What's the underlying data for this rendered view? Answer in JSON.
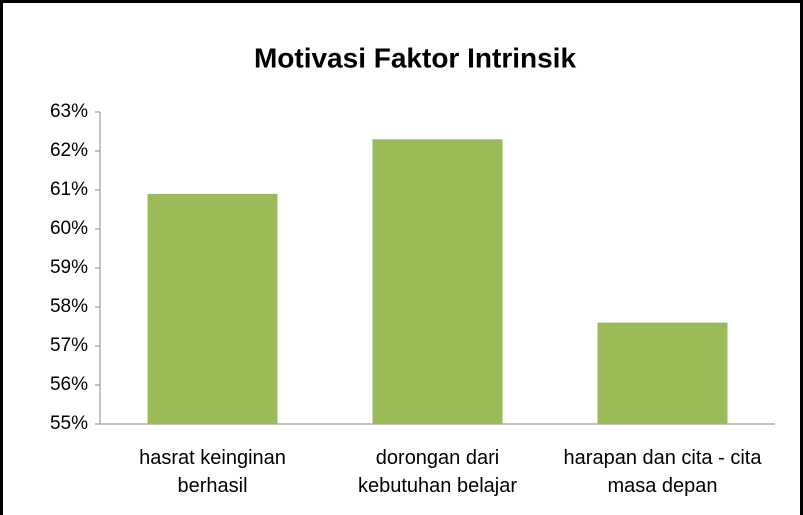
{
  "chart_data": {
    "type": "bar",
    "title": "Motivasi Faktor Intrinsik",
    "categories": [
      "hasrat keinginan berhasil",
      "dorongan dari kebutuhan belajar",
      "harapan dan cita - cita masa depan"
    ],
    "values": [
      60.9,
      62.3,
      57.6
    ],
    "color": "#9bbb59",
    "ylim": [
      55,
      63
    ],
    "yticks": [
      {
        "value": 55,
        "label": "55%"
      },
      {
        "value": 56,
        "label": "56%"
      },
      {
        "value": 57,
        "label": "57%"
      },
      {
        "value": 58,
        "label": "58%"
      },
      {
        "value": 59,
        "label": "59%"
      },
      {
        "value": 60,
        "label": "60%"
      },
      {
        "value": 61,
        "label": "61%"
      },
      {
        "value": 62,
        "label": "62%"
      },
      {
        "value": 63,
        "label": "63%"
      }
    ],
    "grid": false
  }
}
